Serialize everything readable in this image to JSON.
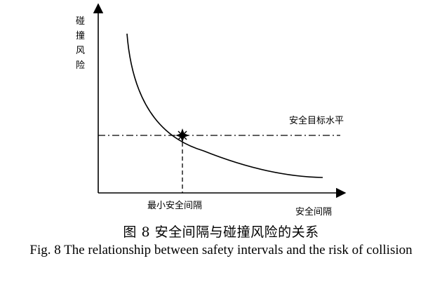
{
  "diagram": {
    "y_axis_label": "碰撞风险",
    "x_axis_label": "安全间隔",
    "threshold_label": "安全目标水平",
    "min_interval_label": "最小安全间隔",
    "threshold_line_style": "dash-dot",
    "drop_line_style": "dashed",
    "intersection_marker": "star-icon",
    "color": "#000000"
  },
  "caption": {
    "chinese": "图 8  安全间隔与碰撞风险的关系",
    "english": "Fig. 8 The relationship between safety intervals and the risk of collision"
  }
}
